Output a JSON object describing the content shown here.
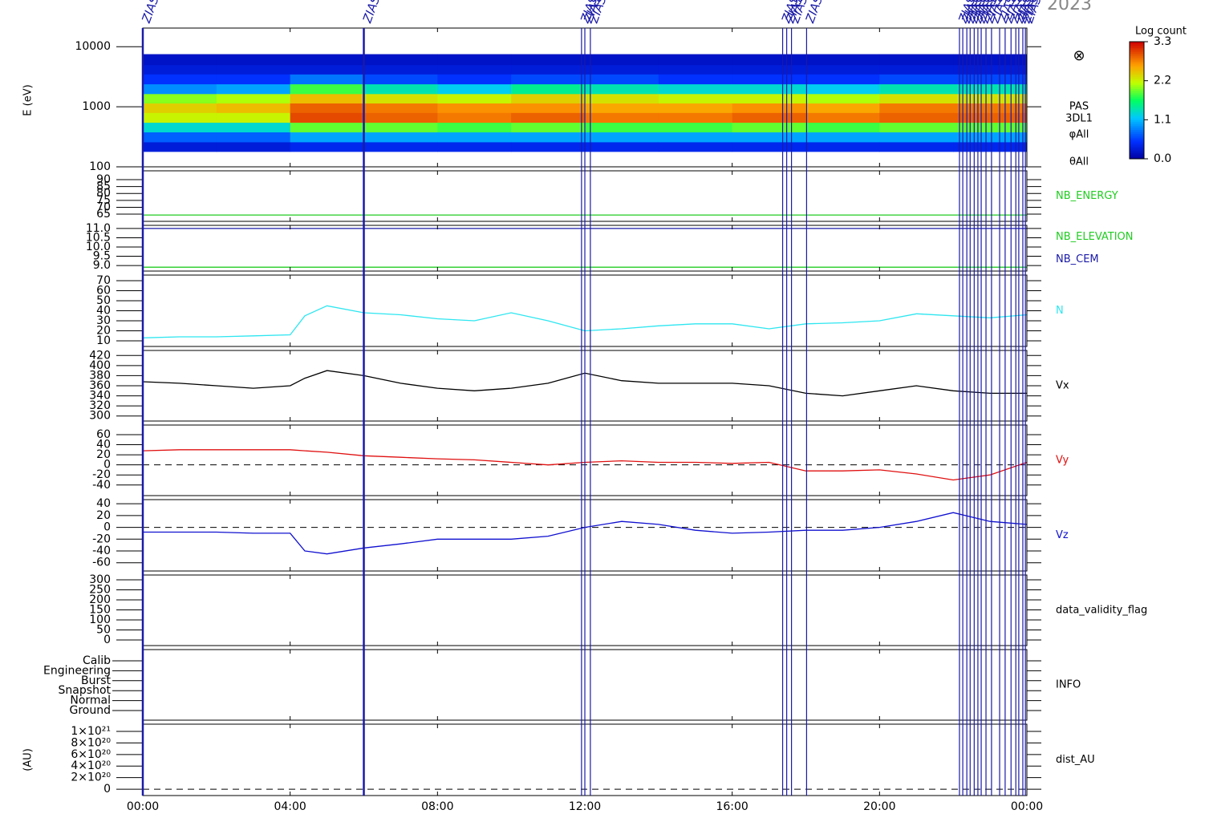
{
  "chart_data": [
    {
      "type": "spectrogram",
      "title": "2023",
      "ylabel": "E (eV)",
      "log_scale": true,
      "ylim": [
        100,
        20400
      ],
      "yticks": [
        100,
        1000,
        10000
      ],
      "x_bins": [
        0,
        2,
        4,
        6,
        8,
        10,
        12,
        14,
        16,
        18,
        20,
        22,
        24
      ],
      "y_bins": [
        180,
        260,
        380,
        550,
        800,
        1150,
        1650,
        2400,
        3500,
        5000,
        7500
      ],
      "values": [
        [
          0.3,
          0.7,
          1.3,
          2.2,
          2.4,
          2.0,
          0.9,
          0.5,
          0.3,
          0.2
        ],
        [
          0.3,
          0.7,
          1.3,
          2.2,
          2.5,
          2.1,
          1.0,
          0.5,
          0.3,
          0.2
        ],
        [
          0.4,
          1.0,
          1.9,
          3.0,
          2.9,
          2.5,
          1.8,
          0.8,
          0.3,
          0.2
        ],
        [
          0.4,
          1.0,
          1.9,
          2.9,
          2.8,
          2.3,
          1.4,
          0.6,
          0.3,
          0.2
        ],
        [
          0.4,
          1.0,
          1.8,
          2.8,
          2.7,
          2.2,
          1.2,
          0.5,
          0.3,
          0.2
        ],
        [
          0.4,
          1.0,
          1.9,
          2.9,
          2.7,
          2.4,
          1.5,
          0.6,
          0.3,
          0.2
        ],
        [
          0.4,
          1.0,
          1.8,
          2.8,
          2.6,
          2.3,
          1.4,
          0.6,
          0.3,
          0.2
        ],
        [
          0.4,
          1.0,
          1.8,
          2.8,
          2.6,
          2.2,
          1.3,
          0.5,
          0.3,
          0.2
        ],
        [
          0.4,
          1.0,
          1.9,
          2.9,
          2.7,
          2.2,
          1.3,
          0.5,
          0.3,
          0.2
        ],
        [
          0.4,
          1.0,
          1.8,
          2.8,
          2.6,
          2.1,
          1.2,
          0.5,
          0.3,
          0.2
        ],
        [
          0.4,
          1.0,
          1.9,
          2.9,
          2.8,
          2.3,
          1.4,
          0.6,
          0.3,
          0.2
        ],
        [
          0.4,
          1.0,
          1.9,
          2.9,
          2.8,
          2.3,
          1.4,
          0.6,
          0.3,
          0.2
        ]
      ],
      "side_labels": [
        "PAS",
        "3DL1",
        "φAll",
        "θAll"
      ],
      "symbol": "⊗",
      "colorbar": {
        "title": "Log count",
        "zlim": [
          0,
          3.3
        ],
        "ticks": [
          {
            "value": 0,
            "label": "0.0"
          },
          1.1,
          2.2,
          3.3
        ]
      },
      "events": {
        "label": "ZIAS",
        "color": "#1a1aa8",
        "x": [
          0,
          6.0,
          11.91,
          12.0,
          12.15,
          17.37,
          17.48,
          17.61,
          18.02,
          22.17,
          22.26,
          22.37,
          22.46,
          22.57,
          22.67,
          22.76,
          22.89,
          23.04,
          23.26,
          23.41,
          23.57,
          23.7,
          23.78,
          23.89,
          23.96
        ]
      }
    },
    {
      "type": "line",
      "ylim": [
        59.8,
        96.4
      ],
      "yticks": [
        65,
        70,
        75,
        80,
        85,
        90
      ],
      "x": [
        0,
        24
      ],
      "series": [
        {
          "name": "NB_ENERGY",
          "color": "#22cc22",
          "values": [
            64.4,
            64.4
          ]
        }
      ]
    },
    {
      "type": "line",
      "ylim": [
        8.7,
        11.17
      ],
      "yticks": [
        {
          "value": 9,
          "label": "9.0"
        },
        9.5,
        {
          "value": 10,
          "label": "10.0"
        },
        10.5,
        {
          "value": 11,
          "label": "11.0"
        }
      ],
      "x": [
        0,
        24
      ],
      "series": [
        {
          "name": "NB_ELEVATION",
          "color": "#22cc22",
          "values": [
            8.91,
            8.91
          ]
        },
        {
          "name": "NB_CEM",
          "color": "#1a1aa8",
          "values": [
            11.0,
            11.0
          ]
        }
      ]
    },
    {
      "type": "line",
      "ylim": [
        4.4,
        75.6
      ],
      "yticks": [
        10,
        20,
        30,
        40,
        50,
        60,
        70
      ],
      "x": [
        0,
        1,
        2,
        3,
        4,
        4.4,
        5,
        6,
        7,
        8,
        9,
        10,
        11,
        12,
        13,
        14,
        15,
        16,
        17,
        18,
        19,
        20,
        21,
        22,
        23,
        24
      ],
      "series": [
        {
          "name": "N",
          "color": "#2ee6f0",
          "values": [
            13,
            14,
            14,
            15,
            16,
            35,
            45,
            38,
            36,
            32,
            30,
            38,
            30,
            20,
            22,
            25,
            27,
            27,
            22,
            27,
            28,
            30,
            37,
            35,
            33,
            36
          ]
        }
      ]
    },
    {
      "type": "line",
      "ylim": [
        290,
        430
      ],
      "yticks": [
        300,
        320,
        340,
        360,
        380,
        400,
        420
      ],
      "x": [
        0,
        1,
        2,
        3,
        4,
        4.4,
        5,
        6,
        7,
        8,
        9,
        10,
        11,
        12,
        13,
        14,
        15,
        16,
        17,
        18,
        19,
        20,
        21,
        22,
        23,
        24
      ],
      "series": [
        {
          "name": "Vx",
          "color": "#000000",
          "values": [
            368,
            365,
            360,
            355,
            360,
            375,
            390,
            380,
            365,
            355,
            350,
            355,
            365,
            385,
            370,
            365,
            365,
            365,
            360,
            345,
            340,
            350,
            360,
            350,
            345,
            345
          ]
        }
      ]
    },
    {
      "type": "line",
      "ylim": [
        -61,
        79
      ],
      "yticks": [
        -40,
        -20,
        0,
        20,
        40,
        60
      ],
      "ref_line": 0,
      "x": [
        0,
        1,
        2,
        3,
        4,
        4.4,
        5,
        6,
        7,
        8,
        9,
        10,
        11,
        12,
        13,
        14,
        15,
        16,
        17,
        18,
        19,
        20,
        21,
        22,
        23,
        24
      ],
      "series": [
        {
          "name": "Vy",
          "color": "#e01010",
          "values": [
            28,
            30,
            30,
            30,
            30,
            28,
            25,
            18,
            15,
            12,
            10,
            5,
            0,
            5,
            8,
            5,
            5,
            3,
            5,
            -12,
            -12,
            -10,
            -18,
            -30,
            -20,
            5
          ]
        }
      ]
    },
    {
      "type": "line",
      "ylim": [
        -74,
        47
      ],
      "yticks": [
        -60,
        -40,
        -20,
        0,
        20,
        40
      ],
      "ref_line": 0,
      "x": [
        0,
        1,
        2,
        3,
        4,
        4.4,
        5,
        6,
        7,
        8,
        9,
        10,
        11,
        12,
        13,
        14,
        15,
        16,
        17,
        18,
        19,
        20,
        21,
        22,
        23,
        24
      ],
      "series": [
        {
          "name": "Vz",
          "color": "#1010d0",
          "values": [
            -8,
            -8,
            -8,
            -10,
            -10,
            -40,
            -45,
            -35,
            -28,
            -20,
            -20,
            -20,
            -15,
            0,
            10,
            5,
            -5,
            -10,
            -8,
            -5,
            -5,
            0,
            10,
            25,
            10,
            5
          ]
        }
      ]
    },
    {
      "type": "line",
      "label": "data_validity_flag",
      "ylim": [
        -28,
        324
      ],
      "yticks": [
        0,
        50,
        100,
        150,
        200,
        250,
        300
      ],
      "series": []
    },
    {
      "type": "category",
      "label": "INFO",
      "categories": [
        "Calib",
        "Engineering",
        "Burst",
        "Snapshot",
        "Normal",
        "Ground"
      ]
    },
    {
      "type": "line",
      "label": "dist_AU",
      "ylabel": "(AU)",
      "ylim": [
        -1.1e+20,
        1.125e+21
      ],
      "ref_line": 0,
      "yticks": [
        0,
        {
          "value": 2e+20,
          "label": "2×10²⁰"
        },
        {
          "value": 4e+20,
          "label": "4×10²⁰"
        },
        {
          "value": 6e+20,
          "label": "6×10²⁰"
        },
        {
          "value": 8e+20,
          "label": "8×10²⁰"
        },
        {
          "value": 1e+21,
          "label": "1×10²¹"
        }
      ],
      "series": [],
      "xlim": [
        0,
        24
      ],
      "xticks": [
        {
          "value": 0,
          "label": "00:00"
        },
        {
          "value": 4,
          "label": "04:00"
        },
        {
          "value": 8,
          "label": "08:00"
        },
        {
          "value": 12,
          "label": "12:00"
        },
        {
          "value": 16,
          "label": "16:00"
        },
        {
          "value": 20,
          "label": "20:00"
        },
        {
          "value": 24,
          "label": "00:00"
        }
      ]
    }
  ]
}
